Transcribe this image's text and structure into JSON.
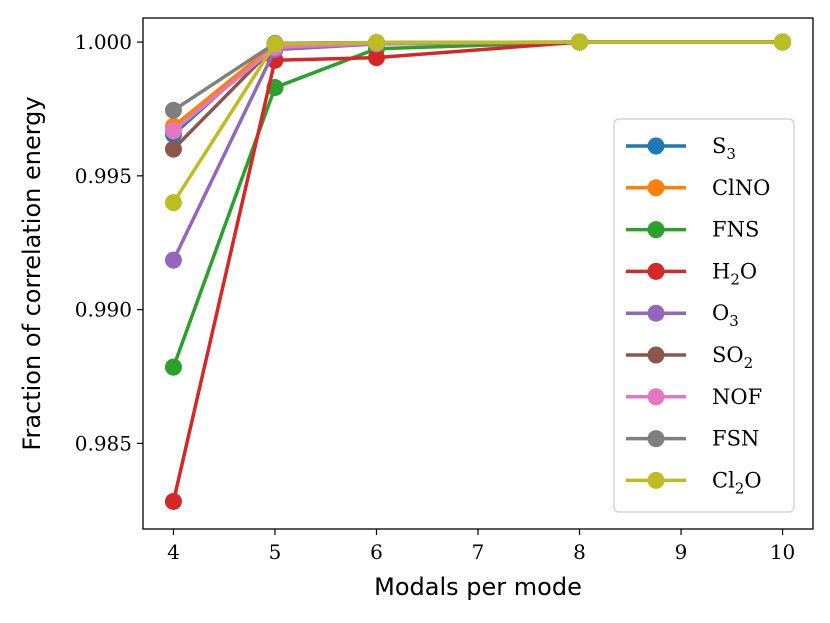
{
  "chart_data": {
    "type": "line",
    "title": "",
    "xlabel": "Modals per mode",
    "ylabel": "Fraction of correlation energy",
    "xlim": [
      3.7,
      10.3
    ],
    "ylim": [
      0.9818,
      1.0009
    ],
    "xticks": [
      4,
      5,
      6,
      7,
      8,
      9,
      10
    ],
    "xtick_labels": [
      "4",
      "5",
      "6",
      "7",
      "8",
      "9",
      "10"
    ],
    "yticks": [
      0.985,
      0.99,
      0.995,
      1.0
    ],
    "ytick_labels": [
      "0.985",
      "0.990",
      "0.995",
      "1.000"
    ],
    "x": [
      4,
      5,
      6,
      8,
      10
    ],
    "grid": false,
    "legend_position": "right",
    "series": [
      {
        "name": "S3",
        "label_main": "S",
        "label_sub": "3",
        "label_tail": "",
        "color": "#1f77b4",
        "values": [
          0.99655,
          0.99995,
          0.99998,
          1.0,
          1.0
        ]
      },
      {
        "name": "ClNO",
        "label_main": "ClNO",
        "label_sub": "",
        "label_tail": "",
        "color": "#ff7f0e",
        "values": [
          0.99685,
          0.99993,
          0.99998,
          1.0,
          1.0
        ]
      },
      {
        "name": "FNS",
        "label_main": "FNS",
        "label_sub": "",
        "label_tail": "",
        "color": "#2ca02c",
        "values": [
          0.98785,
          0.9983,
          0.99975,
          1.0,
          1.0
        ]
      },
      {
        "name": "H2O",
        "label_main": "H",
        "label_sub": "2",
        "label_tail": "O",
        "color": "#d62728",
        "values": [
          0.98283,
          0.99932,
          0.99942,
          1.0,
          1.0
        ]
      },
      {
        "name": "O3",
        "label_main": "O",
        "label_sub": "3",
        "label_tail": "",
        "color": "#9467bd",
        "values": [
          0.99185,
          0.99972,
          0.99993,
          1.0,
          1.0
        ]
      },
      {
        "name": "SO2",
        "label_main": "SO",
        "label_sub": "2",
        "label_tail": "",
        "color": "#8c564b",
        "values": [
          0.996,
          0.99985,
          0.99996,
          1.0,
          1.0
        ]
      },
      {
        "name": "NOF",
        "label_main": "NOF",
        "label_sub": "",
        "label_tail": "",
        "color": "#e377c2",
        "values": [
          0.99668,
          0.9998,
          0.99995,
          1.0,
          1.0
        ]
      },
      {
        "name": "FSN",
        "label_main": "FSN",
        "label_sub": "",
        "label_tail": "",
        "color": "#7f7f7f",
        "values": [
          0.99745,
          0.99995,
          0.99998,
          1.0,
          1.0
        ]
      },
      {
        "name": "Cl2O",
        "label_main": "Cl",
        "label_sub": "2",
        "label_tail": "O",
        "color": "#bcbd22",
        "values": [
          0.994,
          0.99993,
          0.99998,
          1.0,
          1.0
        ]
      }
    ]
  }
}
